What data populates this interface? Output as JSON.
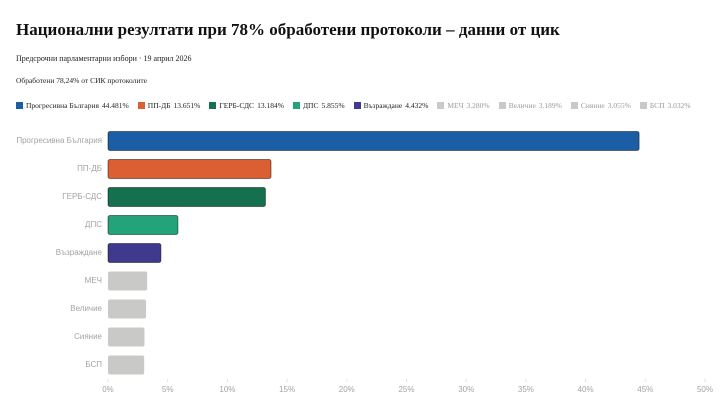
{
  "chart_data": {
    "type": "bar",
    "orientation": "horizontal",
    "title": "Национални резултати при 78% обработени протоколи – данни от цик",
    "subtitle": "Предсрочни парламентарни избори · 19 април 2026",
    "note": "Обработени 78,24% от СИК протоколите",
    "categories": [
      "Прогресивна България",
      "ПП-ДБ",
      "ГЕРБ-СДС",
      "ДПС",
      "Възраждане",
      "МЕЧ",
      "Величие",
      "Сияние",
      "БСП"
    ],
    "values": [
      44.481,
      13.651,
      13.184,
      5.855,
      4.432,
      3.28,
      3.189,
      3.055,
      3.032
    ],
    "value_labels": [
      "44.481%",
      "13.651%",
      "13.184%",
      "5.855%",
      "4.432%",
      "3.280%",
      "3.189%",
      "3.055%",
      "3.032%"
    ],
    "colors": [
      "#1b5ea6",
      "#db5f33",
      "#14704f",
      "#22a37a",
      "#3f3a8e",
      "#c9c9c7",
      "#c9c9c7",
      "#c9c9c7",
      "#c9c9c7"
    ],
    "xlim": [
      0,
      50
    ],
    "xticks": [
      {
        "value": 0,
        "label": "0%"
      },
      {
        "value": 5,
        "label": "5%"
      },
      {
        "value": 10,
        "label": "10%"
      },
      {
        "value": 15,
        "label": "15%"
      },
      {
        "value": 20,
        "label": "20%"
      },
      {
        "value": 25,
        "label": "25%"
      },
      {
        "value": 30,
        "label": "30%"
      },
      {
        "value": 35,
        "label": "35%"
      },
      {
        "value": 40,
        "label": "40%"
      },
      {
        "value": 45,
        "label": "45%"
      },
      {
        "value": 50,
        "label": "50%"
      }
    ],
    "legend": "top"
  }
}
